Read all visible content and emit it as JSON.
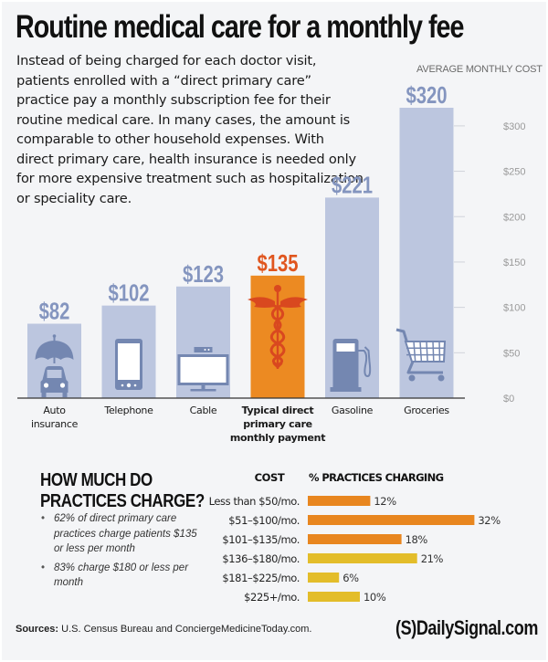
{
  "header": {
    "title": "Routine medical care for a monthly fee",
    "intro": "Instead of being charged for each doctor visit, patients enrolled with a “direct primary care” practice pay a monthly subscription fee for their routine medical care. In many cases, the amount is comparable to other household expenses. With direct primary care, health insurance is needed only for more expensive treatment such as hospitalization or speciality care."
  },
  "colors": {
    "background": "#f4f5f7",
    "bar_default": "#bcc6df",
    "bar_highlight": "#ec8a22",
    "value_default": "#8495bf",
    "value_highlight": "#e0561f",
    "icon_default": "#7487b1",
    "icon_highlight": "#d9481f",
    "range_orange": "#e8861f",
    "range_yellow": "#e3bd2a",
    "axis_text": "#9a9a9a"
  },
  "chart_data": [
    {
      "type": "bar",
      "title": "AVERAGE MONTHLY COST",
      "xlabel": "",
      "ylabel": "",
      "categories": [
        "Auto insurance",
        "Telephone",
        "Cable",
        "Typical direct primary care monthly payment",
        "Gasoline",
        "Groceries"
      ],
      "category_lines": [
        [
          "Auto",
          "insurance"
        ],
        [
          "Telephone"
        ],
        [
          "Cable"
        ],
        [
          "Typical direct",
          "primary care",
          "monthly payment"
        ],
        [
          "Gasoline"
        ],
        [
          "Groceries"
        ]
      ],
      "values": [
        82,
        102,
        123,
        135,
        221,
        320
      ],
      "value_labels": [
        "$82",
        "$102",
        "$123",
        "$135",
        "$221",
        "$320"
      ],
      "highlight_index": 3,
      "icons": [
        "umbrella-car-icon",
        "smartphone-icon",
        "television-icon",
        "caduceus-icon",
        "gas-pump-icon",
        "shopping-cart-icon"
      ],
      "ylim": [
        0,
        320
      ],
      "yticks": [
        0,
        50,
        100,
        150,
        200,
        250,
        300
      ],
      "ytick_labels": [
        "$0",
        "$50",
        "$100",
        "$150",
        "$200",
        "$250",
        "$300"
      ],
      "axis_position": "right",
      "grid": false
    },
    {
      "type": "bar",
      "orientation": "horizontal",
      "title": "HOW MUCH DO PRACTICES CHARGE?",
      "column_headers": [
        "COST",
        "% PRACTICES CHARGING"
      ],
      "categories": [
        "Less than $50/mo.",
        "$51–$100/mo.",
        "$101–$135/mo.",
        "$136–$180/mo.",
        "$181–$225/mo.",
        "$225+/mo."
      ],
      "values": [
        12,
        32,
        18,
        21,
        6,
        10
      ],
      "value_labels": [
        "12%",
        "32%",
        "18%",
        "21%",
        "6%",
        "10%"
      ],
      "bar_colors": [
        "orange",
        "orange",
        "orange",
        "yellow",
        "yellow",
        "yellow"
      ],
      "xlim": [
        0,
        32
      ],
      "grid": false
    }
  ],
  "practices": {
    "heading_lines": [
      "HOW MUCH DO",
      "PRACTICES CHARGE?"
    ],
    "bullets": [
      "62% of direct primary care practices charge patients $135 or less per month",
      "83% charge $180 or less per month"
    ]
  },
  "footer": {
    "sources_label": "Sources:",
    "sources_text": " U.S. Census Bureau and ConciergeMedicineToday.com.",
    "brand": "(S)DailySignal.com"
  }
}
